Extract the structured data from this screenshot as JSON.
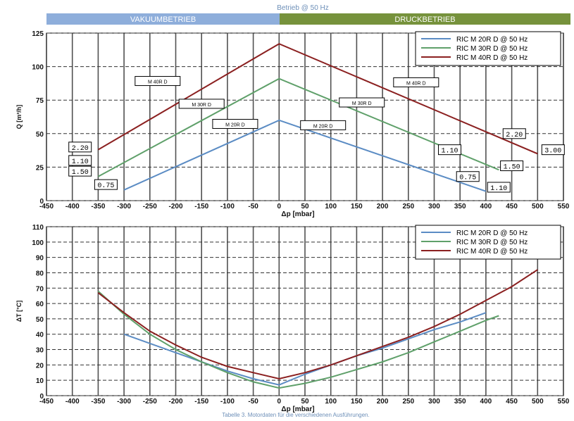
{
  "page_title": "Betrieb @ 50 Hz",
  "caption": "Tabelle 3. Motordaten für die verschiedenen Ausführungen.",
  "mode_bands": [
    {
      "label": "VAKUUMBETRIEB",
      "color": "#8eaedb"
    },
    {
      "label": "DRUCKBETRIEB",
      "color": "#76923c"
    }
  ],
  "colors": {
    "M20": "#5b8cc4",
    "M30": "#5fa06a",
    "M40": "#8b2020"
  },
  "chart_data": [
    {
      "type": "line",
      "xlabel": "Δp [mbar]",
      "ylabel": "Q [m³/h]",
      "xlim": [
        -450,
        550
      ],
      "ylim": [
        0,
        125
      ],
      "xticks": [
        -450,
        -400,
        -350,
        -300,
        -250,
        -200,
        -150,
        -100,
        -50,
        0,
        50,
        100,
        150,
        200,
        250,
        300,
        350,
        400,
        450,
        500,
        550
      ],
      "yticks": [
        0,
        25,
        50,
        75,
        100,
        125
      ],
      "grid": true,
      "legend_position": "top-right",
      "series": [
        {
          "name": "RIC M 20R D @ 50 Hz",
          "color_key": "M20",
          "points": [
            [
              -300,
              8
            ],
            [
              0,
              60
            ],
            [
              400,
              7
            ]
          ]
        },
        {
          "name": "RIC M 30R D @ 50 Hz",
          "color_key": "M30",
          "points": [
            [
              -350,
              18
            ],
            [
              0,
              91
            ],
            [
              425,
              23
            ]
          ]
        },
        {
          "name": "RIC M 40R D @ 50 Hz",
          "color_key": "M40",
          "points": [
            [
              -350,
              38
            ],
            [
              0,
              117
            ],
            [
              500,
              35
            ]
          ]
        }
      ],
      "model_labels": [
        {
          "text": "M 40R D",
          "x": -235,
          "y": 89
        },
        {
          "text": "M 30R D",
          "x": -150,
          "y": 72
        },
        {
          "text": "M 20R D",
          "x": -85,
          "y": 57
        },
        {
          "text": "M 20R D",
          "x": 85,
          "y": 56
        },
        {
          "text": "M 30R D",
          "x": 160,
          "y": 73
        },
        {
          "text": "M 40R D",
          "x": 265,
          "y": 88
        }
      ],
      "value_labels": [
        {
          "text": "2.20",
          "x": -385,
          "y": 40
        },
        {
          "text": "1.10",
          "x": -385,
          "y": 30
        },
        {
          "text": "1.50",
          "x": -385,
          "y": 22
        },
        {
          "text": "0.75",
          "x": -335,
          "y": 12
        },
        {
          "text": "1.10",
          "x": 330,
          "y": 38
        },
        {
          "text": "0.75",
          "x": 365,
          "y": 18
        },
        {
          "text": "1.50",
          "x": 450,
          "y": 26
        },
        {
          "text": "1.10",
          "x": 425,
          "y": 10
        },
        {
          "text": "2.20",
          "x": 455,
          "y": 50
        },
        {
          "text": "3.00",
          "x": 530,
          "y": 38
        }
      ]
    },
    {
      "type": "line",
      "xlabel": "Δp [mbar]",
      "ylabel": "ΔT [°C]",
      "xlim": [
        -450,
        550
      ],
      "ylim": [
        0,
        110
      ],
      "xticks": [
        -450,
        -400,
        -350,
        -300,
        -250,
        -200,
        -150,
        -100,
        -50,
        0,
        50,
        100,
        150,
        200,
        250,
        300,
        350,
        400,
        450,
        500,
        550
      ],
      "yticks": [
        0,
        10,
        20,
        30,
        40,
        50,
        60,
        70,
        80,
        90,
        100,
        110
      ],
      "grid": true,
      "legend_position": "top-right",
      "series": [
        {
          "name": "RIC M 20R D @ 50 Hz",
          "color_key": "M20",
          "points": [
            [
              -300,
              40
            ],
            [
              -250,
              34
            ],
            [
              -200,
              28
            ],
            [
              -150,
              22
            ],
            [
              -100,
              16
            ],
            [
              -50,
              11
            ],
            [
              0,
              7
            ],
            [
              50,
              14
            ],
            [
              100,
              20
            ],
            [
              150,
              26
            ],
            [
              200,
              31
            ],
            [
              250,
              37
            ],
            [
              300,
              43
            ],
            [
              350,
              48
            ],
            [
              400,
              54
            ]
          ]
        },
        {
          "name": "RIC M 30R D @ 50 Hz",
          "color_key": "M30",
          "points": [
            [
              -350,
              68
            ],
            [
              -300,
              53
            ],
            [
              -250,
              40
            ],
            [
              -200,
              30
            ],
            [
              -150,
              22
            ],
            [
              -100,
              15
            ],
            [
              -50,
              9
            ],
            [
              0,
              5
            ],
            [
              50,
              8
            ],
            [
              100,
              12
            ],
            [
              150,
              17
            ],
            [
              200,
              22
            ],
            [
              250,
              28
            ],
            [
              300,
              35
            ],
            [
              350,
              42
            ],
            [
              400,
              49
            ],
            [
              425,
              52
            ]
          ]
        },
        {
          "name": "RIC M 40R D @ 50 Hz",
          "color_key": "M40",
          "points": [
            [
              -350,
              67
            ],
            [
              -300,
              54
            ],
            [
              -250,
              42
            ],
            [
              -200,
              33
            ],
            [
              -150,
              25
            ],
            [
              -100,
              19
            ],
            [
              -50,
              15
            ],
            [
              0,
              11
            ],
            [
              50,
              15
            ],
            [
              100,
              20
            ],
            [
              150,
              26
            ],
            [
              200,
              32
            ],
            [
              250,
              38
            ],
            [
              300,
              45
            ],
            [
              350,
              53
            ],
            [
              400,
              62
            ],
            [
              450,
              71
            ],
            [
              500,
              82
            ]
          ]
        }
      ]
    }
  ]
}
